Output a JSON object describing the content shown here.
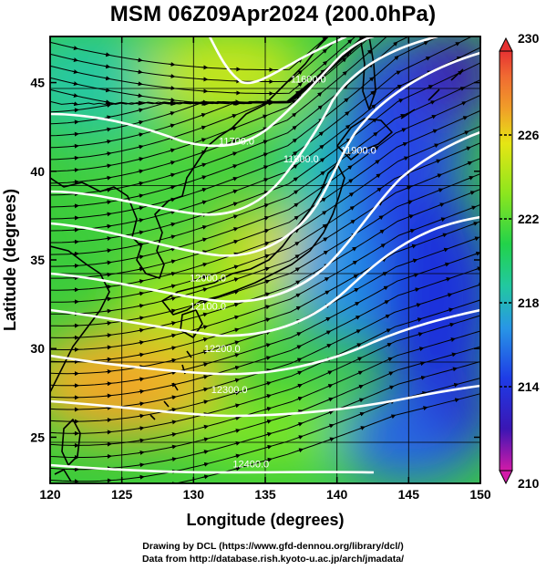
{
  "title": "MSM 06Z09Apr2024 (200.0hPa)",
  "map": {
    "x_label": "Longitude (degrees)",
    "y_label": "Latitude  (degrees)",
    "lon_range": [
      120,
      150
    ],
    "lat_range": [
      22.4,
      47.6
    ],
    "lon_ticks": [
      "120",
      "125",
      "130",
      "135",
      "140",
      "145",
      "150"
    ],
    "lat_ticks": [
      "25",
      "30",
      "35",
      "40",
      "45"
    ],
    "grid": true,
    "field": "temperature (shaded)",
    "overlays": [
      "geopotential height contours (white)",
      "wind streamlines with arrows (black)",
      "coastlines (black)"
    ]
  },
  "colorbar": {
    "min": 210,
    "max": 230,
    "ticks": [
      "230",
      "226",
      "222",
      "218",
      "214",
      "210"
    ],
    "colors": [
      "#d21aa8",
      "#3a16b4",
      "#1e3ce6",
      "#2896e6",
      "#22c8a0",
      "#22d24a",
      "#8ce61e",
      "#e6e614",
      "#f0a028",
      "#f06a32",
      "#e63232"
    ]
  },
  "contours": [
    {
      "label": "11600.0",
      "lon": 138.0,
      "lat": 45.0
    },
    {
      "label": "11700.0",
      "lon": 133.0,
      "lat": 41.5
    },
    {
      "label": "11800.0",
      "lon": 137.5,
      "lat": 40.5
    },
    {
      "label": "11900.0",
      "lon": 141.5,
      "lat": 41.0
    },
    {
      "label": "12000.0",
      "lon": 131.0,
      "lat": 33.8
    },
    {
      "label": "12100.0",
      "lon": 131.0,
      "lat": 32.2
    },
    {
      "label": "12200.0",
      "lon": 132.0,
      "lat": 29.8
    },
    {
      "label": "12300.0",
      "lon": 132.5,
      "lat": 27.5
    },
    {
      "label": "12400.0",
      "lon": 134.0,
      "lat": 23.3
    }
  ],
  "credit": {
    "line1": "Drawing by DCL (https://www.gfd-dennou.org/library/dcl/)",
    "line2": "Data from http://database.rish.kyoto-u.ac.jp/arch/jmadata/"
  }
}
